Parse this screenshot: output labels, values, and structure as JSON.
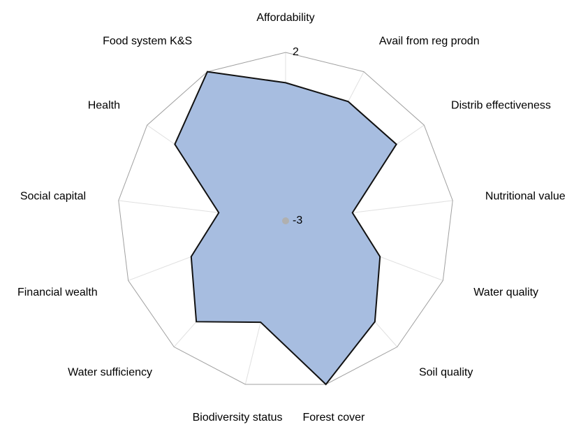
{
  "chart_data": {
    "type": "radar",
    "categories": [
      "Affordability",
      "Avail from reg prodn",
      "Distrib effectiveness",
      "Nutritional value",
      "Water quality",
      "Soil quality",
      "Forest cover",
      "Biodiversity status",
      "Water sufficiency",
      "Financial wealth",
      "Social capital",
      "Health",
      "Food system K&S"
    ],
    "values": [
      1.1,
      1.0,
      1.0,
      -1.0,
      0,
      1.0,
      2,
      0.1,
      1.0,
      0,
      -1.0,
      1.0,
      2
    ],
    "color": "#a7bde0",
    "ylim": [
      -3,
      2
    ],
    "yticks": [
      -3,
      2
    ]
  }
}
